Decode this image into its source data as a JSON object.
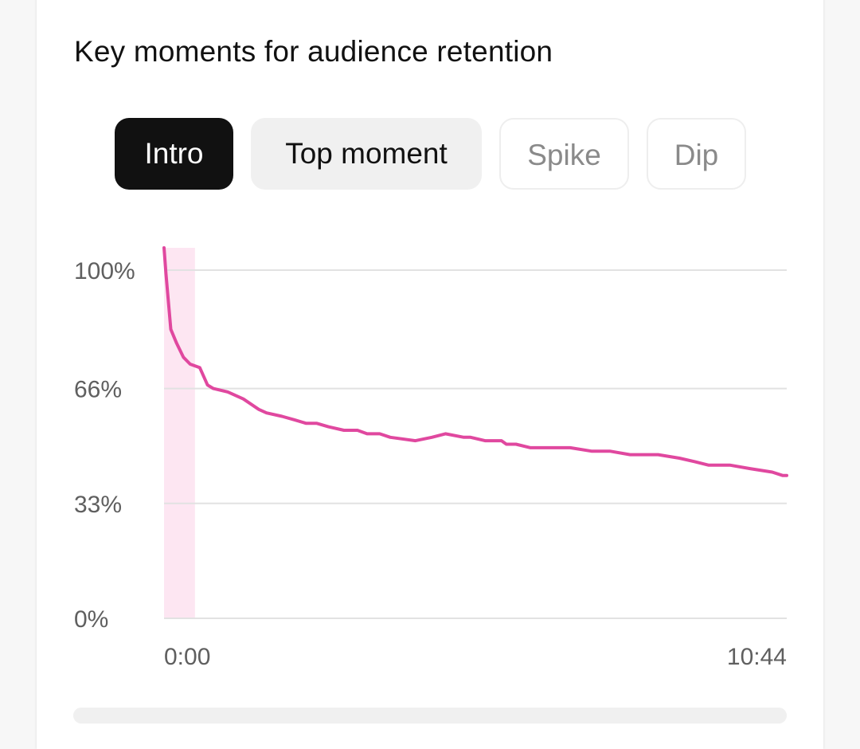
{
  "card": {
    "title": "Key moments for audience retention"
  },
  "tabs": [
    {
      "label": "Intro",
      "state": "active"
    },
    {
      "label": "Top moment",
      "state": "filled"
    },
    {
      "label": "Spike",
      "state": "outline"
    },
    {
      "label": "Dip",
      "state": "outline"
    }
  ],
  "colors": {
    "line": "#e0489f",
    "highlight": "#fde6f2",
    "grid": "#e2e2e2",
    "active_tab": "#111111"
  },
  "chart_data": {
    "type": "line",
    "title": "",
    "xlabel": "",
    "ylabel": "",
    "ylim": [
      0,
      100
    ],
    "y_ticks": [
      "100%",
      "66%",
      "33%",
      "0%"
    ],
    "y_tick_values": [
      100,
      66,
      33,
      0
    ],
    "x_ticks": [
      "0:00",
      "10:44"
    ],
    "x_range_seconds": [
      0,
      644
    ],
    "highlight": {
      "label": "Intro",
      "x_start_seconds": 0,
      "x_end_seconds": 32
    },
    "grid": true,
    "series": [
      {
        "x": [
          0,
          2,
          7,
          13,
          20,
          27,
          37,
          45,
          51,
          66,
          82,
          98,
          106,
          122,
          135,
          147,
          158,
          170,
          186,
          200,
          210,
          223,
          234,
          260,
          277,
          291,
          310,
          317,
          332,
          349,
          354,
          364,
          379,
          398,
          420,
          442,
          461,
          482,
          511,
          533,
          549,
          563,
          585,
          606,
          629,
          640,
          644
        ],
        "y": [
          107,
          99,
          83,
          79,
          75,
          73,
          72,
          67,
          66,
          65,
          63,
          60,
          59,
          58,
          57,
          56,
          56,
          55,
          54,
          54,
          53,
          53,
          52,
          51,
          52,
          53,
          52,
          52,
          51,
          51,
          50,
          50,
          49,
          49,
          49,
          48,
          48,
          47,
          47,
          46,
          45,
          44,
          44,
          43,
          42,
          41,
          41
        ]
      }
    ]
  }
}
